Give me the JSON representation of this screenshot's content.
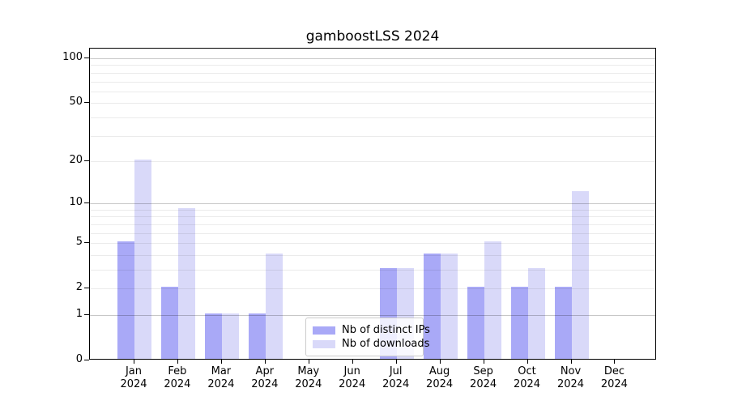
{
  "title": "gamboostLSS 2024",
  "colors": {
    "distinct_ips": "#a9a9f7",
    "downloads": "#d9d9f9",
    "grid_minor": "rgba(0,0,0,0.08)",
    "grid_major": "rgba(0,0,0,0.22)",
    "spine": "#000000",
    "legend_border": "#cccccc",
    "legend_background": "rgba(255,255,255,0.8)",
    "text": "#000000"
  },
  "legend": {
    "items": [
      {
        "label": "Nb of distinct IPs",
        "color_key": "distinct_ips"
      },
      {
        "label": "Nb of downloads",
        "color_key": "downloads"
      }
    ],
    "position": "bottom-center"
  },
  "y_axis": {
    "scale": "log1p",
    "ticks": [
      {
        "label": "100",
        "value": 100
      },
      {
        "label": "50",
        "value": 50
      },
      {
        "label": "20",
        "value": 20
      },
      {
        "label": "10",
        "value": 10
      },
      {
        "label": "5",
        "value": 5
      },
      {
        "label": "2",
        "value": 2
      },
      {
        "label": "1",
        "value": 1
      },
      {
        "label": "0",
        "value": 0
      }
    ],
    "grid_minor_values": [
      2,
      3,
      4,
      5,
      6,
      7,
      8,
      9,
      20,
      30,
      40,
      50,
      60,
      70,
      80,
      90
    ],
    "grid_major_values": [
      1,
      10,
      100
    ]
  },
  "x_axis": {
    "months": [
      {
        "line1": "Jan",
        "line2": "2024"
      },
      {
        "line1": "Feb",
        "line2": "2024"
      },
      {
        "line1": "Mar",
        "line2": "2024"
      },
      {
        "line1": "Apr",
        "line2": "2024"
      },
      {
        "line1": "May",
        "line2": "2024"
      },
      {
        "line1": "Jun",
        "line2": "2024"
      },
      {
        "line1": "Jul",
        "line2": "2024"
      },
      {
        "line1": "Aug",
        "line2": "2024"
      },
      {
        "line1": "Sep",
        "line2": "2024"
      },
      {
        "line1": "Oct",
        "line2": "2024"
      },
      {
        "line1": "Nov",
        "line2": "2024"
      },
      {
        "line1": "Dec",
        "line2": "2024"
      }
    ]
  },
  "chart_data": {
    "type": "bar",
    "title": "gamboostLSS 2024",
    "xlabel": "",
    "ylabel": "",
    "categories": [
      "Jan 2024",
      "Feb 2024",
      "Mar 2024",
      "Apr 2024",
      "May 2024",
      "Jun 2024",
      "Jul 2024",
      "Aug 2024",
      "Sep 2024",
      "Oct 2024",
      "Nov 2024",
      "Dec 2024"
    ],
    "series": [
      {
        "name": "Nb of distinct IPs",
        "color": "#a9a9f7",
        "values": [
          5,
          2,
          1,
          1,
          0,
          0,
          3,
          4,
          2,
          2,
          2,
          0
        ]
      },
      {
        "name": "Nb of downloads",
        "color": "#d9d9f9",
        "values": [
          20,
          9,
          1,
          4,
          0,
          0,
          3,
          4,
          5,
          3,
          12,
          0
        ]
      }
    ],
    "yscale": "log1p",
    "y_ticks": [
      0,
      1,
      2,
      5,
      10,
      20,
      50,
      100
    ],
    "ylim": [
      0,
      116
    ],
    "grid": "horizontal",
    "legend_position": "lower center"
  }
}
